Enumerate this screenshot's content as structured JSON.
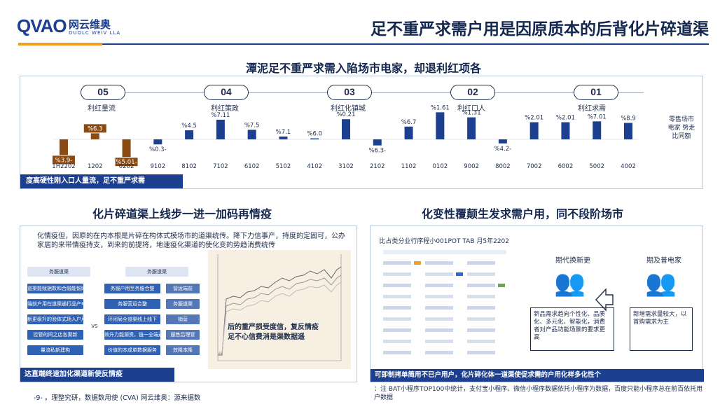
{
  "header": {
    "logo_mark": "QVAO",
    "logo_cn": "网云维奥",
    "logo_en": "DUOLC WEIV LLA",
    "title": "足不重严求需户用是因原质本的后背化片碎道渠"
  },
  "top_section": {
    "title": "潭泥足不重严求需入陷场市电家，却退利红项各",
    "stages": [
      {
        "num": "01",
        "label": "利红求需"
      },
      {
        "num": "02",
        "label": "利红口人"
      },
      {
        "num": "03",
        "label": "利红化镇城"
      },
      {
        "num": "04",
        "label": "利红策政"
      },
      {
        "num": "05",
        "label": "利红量流"
      }
    ],
    "ylabel": "零售场市电家 势走比同额",
    "banner": "度高硬性刚入口人量流，足不重严求需"
  },
  "chart_data": {
    "type": "bar",
    "title": "",
    "xlabel": "",
    "ylabel": "零售场市电家 势走比同额",
    "categories": [
      "4002",
      "5002",
      "6002",
      "7002",
      "8002",
      "9002",
      "0102",
      "1102",
      "2102",
      "3102",
      "4102",
      "5102",
      "6102",
      "7102",
      "8102",
      "9102",
      "0202",
      "1202",
      "1H2202"
    ],
    "values": [
      9.8,
      10.7,
      10.2,
      10.2,
      -2.4,
      13.1,
      16.1,
      7.6,
      -3.6,
      12.0,
      0.6,
      1.7,
      5.7,
      11.7,
      5.4,
      -3.0,
      -10.5,
      3.6,
      -9.3
    ],
    "value_labels": [
      "%8.9",
      "%7.01",
      "%2.01",
      "%2.01",
      "%4.2-",
      "%1.31",
      "%1.61",
      "%6.7",
      "%6.3-",
      "%0.21",
      "%6.0",
      "%7.1",
      "%7.5",
      "%7.11",
      "%4.5",
      "%0.3-",
      "%5.01-",
      "%6.3",
      "%3.9-"
    ],
    "highlighted": [
      false,
      false,
      false,
      false,
      false,
      false,
      false,
      false,
      false,
      false,
      false,
      false,
      false,
      false,
      false,
      false,
      true,
      true,
      true
    ],
    "colors": {
      "normal": "#1d3f8f",
      "highlight": "#8a4a12"
    },
    "ylim": [
      -12,
      18
    ]
  },
  "bottom_left": {
    "title": "化片碎道渠上线步一进一加码再情疫",
    "text": "化情疫但，因原的在内本根是片碎在构体式模场市的道渠统传。降下力信事产，持度的定固可，公办家居的来带情疫持支，到来的前提将，地速疫化渠道的使化变的势趋消费统传",
    "callout_line1": "后的重严损受度信，复反情疫",
    "callout_line2": "足不心信费消是渠数据遥",
    "flow_headers": [
      "务服道渠",
      "务服道渠"
    ],
    "flow_left": [
      "道渠能赋据数和合融能智网",
      "端前户用在道渠通打品产电家",
      "新更级升的验体式场入户用",
      "控管的间之店各渠新",
      "量流私新建构"
    ],
    "flow_right": [
      "务服户用至务服合整",
      "务服营运合整",
      "环闭局全道渠线上线下",
      "效升力能源资，链一全端通",
      "价值的本成单数据服务"
    ],
    "flow_mid": [
      "营运端前",
      "务服道渠",
      "销营",
      "服售后理管",
      "效降本降"
    ],
    "flow_vs": "VS",
    "banner": "达直端终速加化渠道新使反情疫"
  },
  "bottom_right": {
    "title": "化变性覆颠生发求需户用，同不段阶场市",
    "table_title": "比占类分业行序程小001POT TAB 月5年2202",
    "left_label": "期及普电家",
    "right_label": "期代换新更",
    "left_desc": "新增需求量较大，以首购需求为主",
    "right_desc": "新品需求趋向个性化、品质化、多元化、智能化，消费者对产品功能场景的要求更高",
    "banner": "可即制拷单简用不已户用户，化片碎化体一道渠使促求需的户用化样多化性个"
  },
  "footer": {
    "source": "-9- 。理整究研，数据数用使 (CVA) 网云维奥：源来据数",
    "note": "：注  BAT小程序TOP100中统计，支付宝小程序、微信小程序数据依托小程序为数据，百度只能小程序总在前百依托用户数据"
  }
}
